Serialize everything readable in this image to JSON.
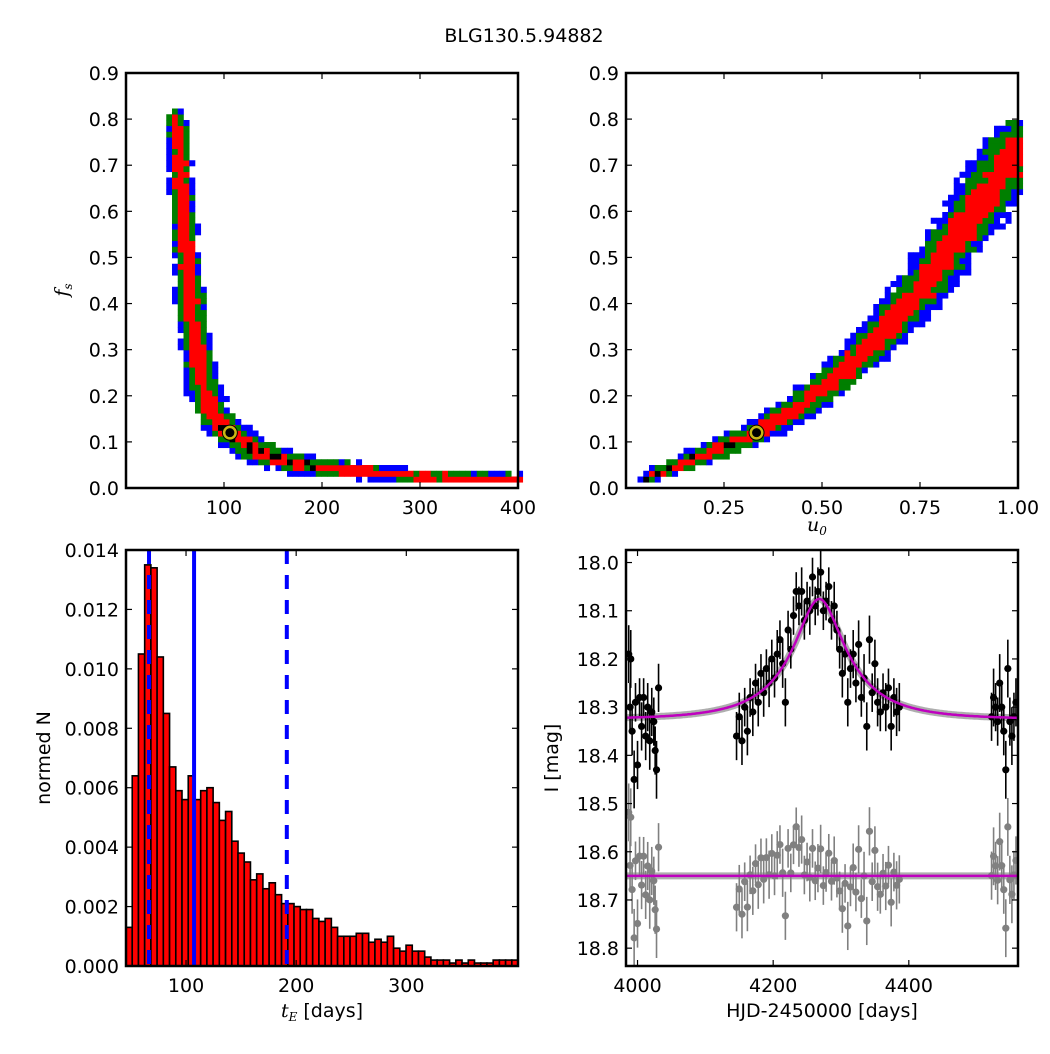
{
  "figure_title": "BLG130.5.94882",
  "colors": {
    "blue": "#0000ff",
    "green": "#007f00",
    "red": "#ff0000",
    "black": "#000000",
    "marker": "#c9b814",
    "model": "#bf00bf",
    "resid": "#808080",
    "hist": "#ff0000"
  },
  "chart_data": [
    {
      "id": "fs-vs-tE",
      "type": "heatmap",
      "xlabel_main": "",
      "ylabel_main": "f",
      "ylabel_sub": "s",
      "xlim": [
        0,
        400
      ],
      "ylim": [
        0,
        0.9
      ],
      "xticks": [
        100,
        200,
        300,
        400
      ],
      "xtick_labels": [
        "100",
        "200",
        "300",
        "400"
      ],
      "yticks": [
        0,
        0.1,
        0.2,
        0.3,
        0.4,
        0.5,
        0.6,
        0.7,
        0.8,
        0.9
      ],
      "ytick_labels": [
        "0.0",
        "0.1",
        "0.2",
        "0.3",
        "0.4",
        "0.5",
        "0.6",
        "0.7",
        "0.8",
        "0.9"
      ],
      "levels": [
        "black",
        "red",
        "green",
        "blue"
      ],
      "ridge": [
        [
          52,
          0.8,
          1.6
        ],
        [
          55,
          0.7,
          2
        ],
        [
          58,
          0.6,
          2
        ],
        [
          62,
          0.5,
          2.2
        ],
        [
          66,
          0.4,
          2.5
        ],
        [
          72,
          0.3,
          2.6
        ],
        [
          78,
          0.22,
          2.6
        ],
        [
          90,
          0.16,
          2.6
        ],
        [
          105,
          0.12,
          2.6
        ],
        [
          130,
          0.085,
          2.2
        ],
        [
          160,
          0.06,
          2
        ],
        [
          200,
          0.045,
          1.6
        ],
        [
          250,
          0.035,
          1.3
        ],
        [
          300,
          0.025,
          1.1
        ],
        [
          400,
          0.02,
          0.9
        ]
      ],
      "core_region": [
        95,
        200
      ],
      "best_fit": [
        106,
        0.12
      ]
    },
    {
      "id": "fs-vs-u0",
      "type": "heatmap",
      "xlabel_main": "u",
      "xlabel_sub": "0",
      "xlim": [
        0,
        1.0
      ],
      "ylim": [
        0,
        0.9
      ],
      "xticks": [
        0.25,
        0.5,
        0.75,
        1.0
      ],
      "xtick_labels": [
        "0.25",
        "0.50",
        "0.75",
        "1.00"
      ],
      "yticks": [
        0,
        0.1,
        0.2,
        0.3,
        0.4,
        0.5,
        0.6,
        0.7,
        0.8,
        0.9
      ],
      "ytick_labels": [
        "0.0",
        "0.1",
        "0.2",
        "0.3",
        "0.4",
        "0.5",
        "0.6",
        "0.7",
        "0.8",
        "0.9"
      ],
      "levels": [
        "black",
        "red",
        "green",
        "blue"
      ],
      "ridge": [
        [
          0.05,
          0.02,
          1
        ],
        [
          0.15,
          0.055,
          1.5
        ],
        [
          0.25,
          0.09,
          2
        ],
        [
          0.33,
          0.12,
          2
        ],
        [
          0.45,
          0.18,
          2.5
        ],
        [
          0.55,
          0.25,
          3
        ],
        [
          0.65,
          0.33,
          3.5
        ],
        [
          0.75,
          0.43,
          4
        ],
        [
          0.85,
          0.55,
          4.5
        ],
        [
          0.93,
          0.65,
          5
        ],
        [
          1.0,
          0.74,
          5
        ]
      ],
      "core_region": [
        0.05,
        0.3
      ],
      "best_fit": [
        0.333,
        0.12
      ]
    },
    {
      "id": "tE-histogram",
      "type": "bar",
      "xlabel_main": "t",
      "xlabel_sub": "E",
      "xlabel_rest": " [days]",
      "ylabel": "normed N",
      "xlim": [
        45.5,
        401.4
      ],
      "ylim": [
        0,
        0.014
      ],
      "bin_start": 45.5,
      "bin_width": 5.65,
      "values": [
        0.0013,
        0.0064,
        0.0105,
        0.0135,
        0.0134,
        0.0104,
        0.0085,
        0.0067,
        0.0059,
        0.0056,
        0.0064,
        0.0056,
        0.0059,
        0.006,
        0.0055,
        0.0049,
        0.0052,
        0.0042,
        0.0038,
        0.0035,
        0.0029,
        0.0031,
        0.0026,
        0.0028,
        0.0024,
        0.0021,
        0.0021,
        0.002,
        0.0019,
        0.0019,
        0.0016,
        0.0015,
        0.0016,
        0.0013,
        0.001,
        0.001,
        0.001,
        0.0011,
        0.0011,
        0.0008,
        0.0009,
        0.0008,
        0.001,
        0.0006,
        0.0005,
        0.0007,
        0.0005,
        0.0005,
        0.0003,
        0.0002,
        0.0002,
        0.0002,
        0.0001,
        0.0002,
        0.0001,
        0.0002,
        0.0001,
        0.0001,
        0.0001,
        0.0002,
        0.0002,
        0.0002,
        0.0002
      ],
      "xticks": [
        100,
        200,
        300
      ],
      "xtick_labels": [
        "100",
        "200",
        "300"
      ],
      "yticks": [
        0,
        0.002,
        0.004,
        0.006,
        0.008,
        0.01,
        0.012,
        0.014
      ],
      "ytick_labels": [
        "0.000",
        "0.002",
        "0.004",
        "0.006",
        "0.008",
        "0.010",
        "0.012",
        "0.014"
      ],
      "vlines": [
        {
          "x": 66.4,
          "style": "dashed"
        },
        {
          "x": 107.3,
          "style": "solid"
        },
        {
          "x": 191.5,
          "style": "dashed"
        }
      ]
    },
    {
      "id": "light-curve",
      "type": "scatter",
      "xlabel": "HJD-2450000 [days]",
      "ylabel": "I [mag]",
      "xlim": [
        3983,
        4561
      ],
      "ylim": [
        18.837,
        17.974
      ],
      "xticks": [
        4000,
        4200,
        4400
      ],
      "xtick_labels": [
        "4000",
        "4200",
        "4400"
      ],
      "yticks": [
        18.0,
        18.1,
        18.2,
        18.3,
        18.4,
        18.5,
        18.6,
        18.7,
        18.8
      ],
      "ytick_labels": [
        "18.0",
        "18.1",
        "18.2",
        "18.3",
        "18.4",
        "18.5",
        "18.6",
        "18.7",
        "18.8"
      ],
      "model": {
        "baseline": 18.325,
        "t0": 4268,
        "tE": 107,
        "u0": 0.33,
        "fs": 0.12
      },
      "residual_offset": 18.65,
      "points": [
        [
          3987,
          18.19,
          0.06
        ],
        [
          3989,
          18.3,
          0.05
        ],
        [
          3990,
          18.2,
          0.06
        ],
        [
          3992,
          18.35,
          0.05
        ],
        [
          3995,
          18.45,
          0.06
        ],
        [
          3997,
          18.29,
          0.04
        ],
        [
          4000,
          18.42,
          0.05
        ],
        [
          4003,
          18.28,
          0.04
        ],
        [
          4006,
          18.34,
          0.05
        ],
        [
          4009,
          18.28,
          0.04
        ],
        [
          4012,
          18.36,
          0.05
        ],
        [
          4015,
          18.3,
          0.05
        ],
        [
          4018,
          18.37,
          0.06
        ],
        [
          4021,
          18.31,
          0.05
        ],
        [
          4024,
          18.33,
          0.05
        ],
        [
          4026,
          18.39,
          0.05
        ],
        [
          4028,
          18.43,
          0.06
        ],
        [
          4031,
          18.26,
          0.05
        ],
        [
          4146,
          18.36,
          0.05
        ],
        [
          4150,
          18.32,
          0.05
        ],
        [
          4154,
          18.37,
          0.05
        ],
        [
          4158,
          18.3,
          0.04
        ],
        [
          4162,
          18.35,
          0.05
        ],
        [
          4166,
          18.28,
          0.04
        ],
        [
          4170,
          18.31,
          0.05
        ],
        [
          4174,
          18.25,
          0.04
        ],
        [
          4178,
          18.29,
          0.05
        ],
        [
          4182,
          18.23,
          0.04
        ],
        [
          4186,
          18.27,
          0.05
        ],
        [
          4190,
          18.22,
          0.04
        ],
        [
          4194,
          18.25,
          0.05
        ],
        [
          4198,
          18.2,
          0.04
        ],
        [
          4202,
          18.24,
          0.04
        ],
        [
          4206,
          18.19,
          0.05
        ],
        [
          4210,
          18.16,
          0.04
        ],
        [
          4214,
          18.21,
          0.05
        ],
        [
          4218,
          18.29,
          0.05
        ],
        [
          4222,
          18.14,
          0.04
        ],
        [
          4226,
          18.18,
          0.04
        ],
        [
          4230,
          18.11,
          0.04
        ],
        [
          4234,
          18.06,
          0.04
        ],
        [
          4238,
          18.09,
          0.04
        ],
        [
          4242,
          18.06,
          0.05
        ],
        [
          4246,
          18.12,
          0.04
        ],
        [
          4250,
          18.08,
          0.04
        ],
        [
          4254,
          18.1,
          0.05
        ],
        [
          4258,
          18.03,
          0.04
        ],
        [
          4262,
          18.09,
          0.04
        ],
        [
          4266,
          18.06,
          0.05
        ],
        [
          4270,
          18.02,
          0.05
        ],
        [
          4274,
          18.1,
          0.04
        ],
        [
          4278,
          18.08,
          0.04
        ],
        [
          4282,
          18.05,
          0.04
        ],
        [
          4286,
          18.12,
          0.04
        ],
        [
          4290,
          18.09,
          0.05
        ],
        [
          4294,
          18.14,
          0.04
        ],
        [
          4298,
          18.18,
          0.04
        ],
        [
          4302,
          18.23,
          0.05
        ],
        [
          4306,
          18.19,
          0.04
        ],
        [
          4310,
          18.29,
          0.05
        ],
        [
          4314,
          18.22,
          0.04
        ],
        [
          4318,
          18.19,
          0.05
        ],
        [
          4322,
          18.25,
          0.04
        ],
        [
          4326,
          18.17,
          0.05
        ],
        [
          4330,
          18.28,
          0.04
        ],
        [
          4334,
          18.24,
          0.05
        ],
        [
          4338,
          18.34,
          0.05
        ],
        [
          4342,
          18.16,
          0.05
        ],
        [
          4346,
          18.27,
          0.04
        ],
        [
          4350,
          18.21,
          0.05
        ],
        [
          4354,
          18.29,
          0.05
        ],
        [
          4358,
          18.31,
          0.04
        ],
        [
          4362,
          18.27,
          0.04
        ],
        [
          4366,
          18.3,
          0.05
        ],
        [
          4370,
          18.26,
          0.04
        ],
        [
          4374,
          18.34,
          0.05
        ],
        [
          4378,
          18.28,
          0.04
        ],
        [
          4382,
          18.31,
          0.05
        ],
        [
          4386,
          18.3,
          0.05
        ],
        [
          4522,
          18.32,
          0.05
        ],
        [
          4525,
          18.28,
          0.06
        ],
        [
          4528,
          18.3,
          0.05
        ],
        [
          4531,
          18.33,
          0.05
        ],
        [
          4534,
          18.25,
          0.06
        ],
        [
          4537,
          18.3,
          0.05
        ],
        [
          4540,
          18.35,
          0.05
        ],
        [
          4543,
          18.43,
          0.06
        ],
        [
          4546,
          18.22,
          0.06
        ],
        [
          4549,
          18.33,
          0.05
        ],
        [
          4552,
          18.36,
          0.06
        ],
        [
          4555,
          18.32,
          0.05
        ],
        [
          4558,
          18.29,
          0.05
        ]
      ]
    }
  ]
}
